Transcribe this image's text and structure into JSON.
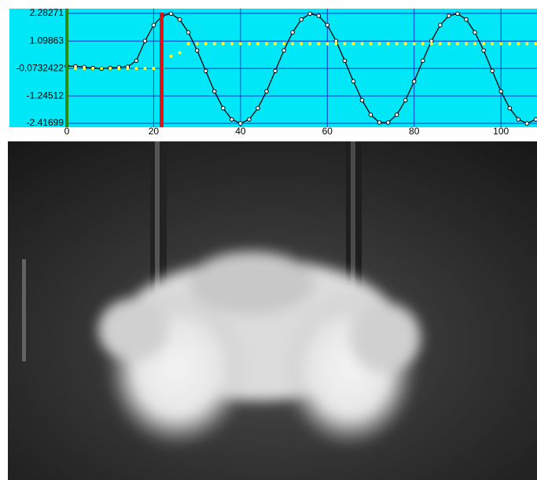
{
  "chart_data": {
    "type": "line",
    "x": [
      0,
      2,
      4,
      6,
      8,
      10,
      12,
      14,
      16,
      18,
      20,
      22,
      24,
      26,
      28,
      30,
      32,
      34,
      36,
      38,
      40,
      42,
      44,
      46,
      48,
      50,
      52,
      54,
      56,
      58,
      60,
      62,
      64,
      66,
      68,
      70,
      72,
      74,
      76,
      78,
      80,
      82,
      84,
      86,
      88,
      90,
      92,
      94,
      96,
      98,
      100,
      102,
      104,
      106,
      108
    ],
    "series": [
      {
        "color": "#000000",
        "values": [
          0.03,
          0.02,
          -0.01,
          -0.05,
          -0.08,
          -0.05,
          -0.02,
          0.0,
          0.26,
          1.105,
          1.78,
          2.18,
          2.27,
          2.02,
          1.47,
          0.7,
          -0.18,
          -1.05,
          -1.77,
          -2.25,
          -2.42,
          -2.25,
          -1.77,
          -1.05,
          -0.18,
          0.7,
          1.47,
          2.02,
          2.27,
          2.18,
          1.78,
          1.105,
          0.26,
          -0.62,
          -1.43,
          -2.05,
          -2.38,
          -2.38,
          -2.05,
          -1.43,
          -0.63,
          0.26,
          1.105,
          1.78,
          2.18,
          2.27,
          2.02,
          1.47,
          0.7,
          -0.18,
          -1.05,
          -1.77,
          -2.25,
          -2.42,
          -2.25
        ]
      },
      {
        "color": "#ffff33",
        "values": [
          -0.07,
          -0.07,
          -0.07,
          -0.07,
          -0.07,
          -0.07,
          -0.07,
          -0.07,
          -0.07,
          -0.07,
          -0.07,
          -0.07,
          0.45,
          0.6,
          0.98,
          0.98,
          0.98,
          0.98,
          0.98,
          0.98,
          0.98,
          0.98,
          0.98,
          0.98,
          0.98,
          0.98,
          0.98,
          0.98,
          0.98,
          0.98,
          0.98,
          0.98,
          0.98,
          0.98,
          0.98,
          0.98,
          0.98,
          0.98,
          0.98,
          0.98,
          0.98,
          0.98,
          0.98,
          0.98,
          0.98,
          0.98,
          0.98,
          0.98,
          0.98,
          0.98,
          0.98,
          0.98,
          0.98,
          0.98,
          0.98
        ]
      }
    ],
    "xlim": [
      0,
      108.3
    ],
    "xticks": [
      0,
      20,
      40,
      60,
      80,
      100
    ],
    "ylim": [
      -2.41699,
      2.28271
    ],
    "yticks": [
      2.28271,
      1.09863,
      -0.0732422,
      -1.24512,
      -2.41699
    ],
    "grid": true
  }
}
